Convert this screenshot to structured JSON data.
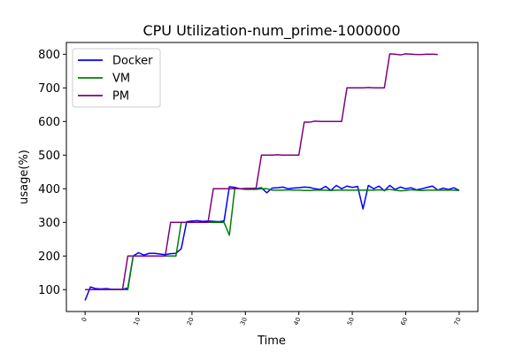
{
  "chart_data": {
    "type": "line",
    "title": "CPU Utilization-num_prime-1000000",
    "xlabel": "Time",
    "ylabel": "usage(%)",
    "xlim": [
      -3.5,
      73.5
    ],
    "ylim": [
      35,
      835
    ],
    "xticks": [
      0,
      10,
      20,
      30,
      40,
      50,
      60,
      70
    ],
    "xtick_labels": [
      "0",
      "10",
      "20",
      "30",
      "40",
      "50",
      "60",
      "70"
    ],
    "yticks": [
      100,
      200,
      300,
      400,
      500,
      600,
      700,
      800
    ],
    "ytick_labels": [
      "100",
      "200",
      "300",
      "400",
      "500",
      "600",
      "700",
      "800"
    ],
    "legend_position": "top-left",
    "series": [
      {
        "name": "Docker",
        "color": "#0000ff",
        "x": [
          0,
          1,
          2,
          3,
          4,
          5,
          6,
          7,
          8,
          9,
          10,
          11,
          12,
          13,
          14,
          15,
          16,
          17,
          18,
          19,
          20,
          21,
          22,
          23,
          24,
          25,
          26,
          27,
          28,
          29,
          30,
          31,
          32,
          33,
          34,
          35,
          36,
          37,
          38,
          39,
          40,
          41,
          42,
          43,
          44,
          45,
          46,
          47,
          48,
          49,
          50,
          51,
          52,
          53,
          54,
          55,
          56,
          57,
          58,
          59,
          60,
          61,
          62,
          63,
          64,
          65,
          66,
          67,
          68,
          69,
          70
        ],
        "y": [
          68,
          108,
          103,
          102,
          103,
          101,
          101,
          101,
          105,
          200,
          210,
          203,
          208,
          208,
          206,
          204,
          207,
          208,
          222,
          302,
          304,
          305,
          303,
          304,
          303,
          302,
          304,
          406,
          404,
          400,
          399,
          401,
          400,
          403,
          388,
          402,
          403,
          405,
          400,
          402,
          403,
          405,
          404,
          400,
          398,
          407,
          395,
          410,
          400,
          408,
          404,
          407,
          340,
          410,
          400,
          408,
          394,
          410,
          398,
          405,
          400,
          403,
          397,
          400,
          404,
          408,
          396,
          402,
          398,
          403,
          395
        ]
      },
      {
        "name": "VM",
        "color": "#008000",
        "x": [
          0,
          1,
          2,
          3,
          4,
          5,
          6,
          7,
          8,
          9,
          10,
          11,
          12,
          13,
          14,
          15,
          16,
          17,
          18,
          19,
          20,
          21,
          22,
          23,
          24,
          25,
          26,
          27,
          28,
          29,
          30,
          31,
          32,
          33,
          34,
          35,
          36,
          37,
          38,
          39,
          40,
          41,
          42,
          43,
          44,
          45,
          46,
          47,
          48,
          49,
          50,
          51,
          52,
          53,
          54,
          55,
          56,
          57,
          58,
          59,
          60,
          61,
          62,
          63,
          64,
          65,
          66,
          67,
          68,
          69,
          70
        ],
        "y": [
          100,
          100,
          100,
          100,
          100,
          100,
          100,
          100,
          100,
          200,
          200,
          200,
          200,
          200,
          200,
          200,
          200,
          200,
          300,
          300,
          300,
          300,
          300,
          300,
          300,
          300,
          300,
          262,
          400,
          400,
          398,
          398,
          398,
          400,
          400,
          396,
          396,
          396,
          397,
          396,
          396,
          395,
          395,
          396,
          396,
          396,
          395,
          396,
          396,
          396,
          396,
          396,
          396,
          396,
          396,
          397,
          396,
          398,
          396,
          394,
          395,
          397,
          396,
          395,
          396,
          396,
          396,
          396,
          396,
          396,
          395
        ]
      },
      {
        "name": "PM",
        "color": "#800080",
        "x": [
          0,
          1,
          2,
          3,
          4,
          5,
          6,
          7,
          8,
          9,
          10,
          11,
          12,
          13,
          14,
          15,
          16,
          17,
          18,
          19,
          20,
          21,
          22,
          23,
          24,
          25,
          26,
          27,
          28,
          29,
          30,
          31,
          32,
          33,
          34,
          35,
          36,
          37,
          38,
          39,
          40,
          41,
          42,
          43,
          44,
          45,
          46,
          47,
          48,
          49,
          50,
          51,
          52,
          53,
          54,
          55,
          56,
          57,
          58,
          59,
          60,
          61,
          62,
          63,
          64,
          65,
          66
        ],
        "y": [
          100,
          100,
          100,
          100,
          100,
          100,
          100,
          100,
          200,
          200,
          200,
          200,
          200,
          200,
          200,
          200,
          300,
          300,
          300,
          300,
          300,
          300,
          300,
          300,
          400,
          400,
          400,
          400,
          400,
          400,
          401,
          401,
          402,
          500,
          500,
          500,
          501,
          500,
          500,
          500,
          500,
          598,
          598,
          601,
          600,
          600,
          600,
          600,
          600,
          700,
          700,
          700,
          700,
          701,
          700,
          700,
          700,
          801,
          800,
          798,
          801,
          800,
          799,
          799,
          800,
          800,
          799
        ]
      }
    ]
  }
}
